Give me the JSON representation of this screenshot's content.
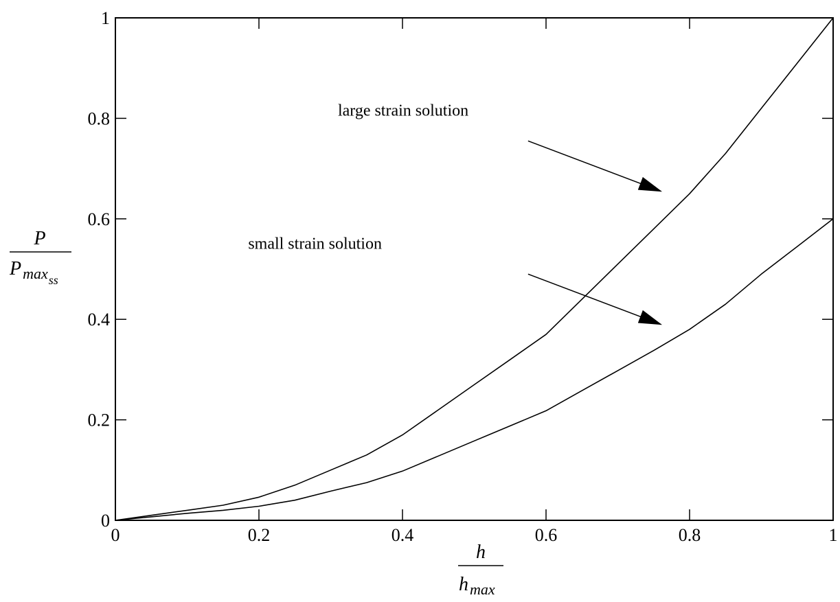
{
  "chart_data": {
    "type": "line",
    "xlim": [
      0,
      1
    ],
    "ylim": [
      0,
      1
    ],
    "grid": false,
    "x_ticks": [
      "0",
      "0.2",
      "0.4",
      "0.6",
      "0.8",
      "1"
    ],
    "y_ticks": [
      "0",
      "0.2",
      "0.4",
      "0.6",
      "0.8",
      "1"
    ],
    "xlabel": {
      "numerator": "h",
      "denominator_base": "h",
      "denominator_subscript": "max"
    },
    "ylabel": {
      "numerator": "P",
      "denominator_base": "P",
      "denominator_subscript": "max",
      "denominator_subsubscript": "ss"
    },
    "series": [
      {
        "name": "large strain solution",
        "x": [
          0,
          0.05,
          0.1,
          0.15,
          0.2,
          0.25,
          0.3,
          0.35,
          0.4,
          0.45,
          0.5,
          0.55,
          0.6,
          0.65,
          0.7,
          0.75,
          0.8,
          0.85,
          0.9,
          0.95,
          1.0
        ],
        "y": [
          0,
          0.01,
          0.02,
          0.03,
          0.046,
          0.07,
          0.1,
          0.13,
          0.17,
          0.22,
          0.27,
          0.32,
          0.37,
          0.44,
          0.51,
          0.58,
          0.65,
          0.73,
          0.82,
          0.91,
          1.0
        ]
      },
      {
        "name": "small strain solution",
        "x": [
          0,
          0.05,
          0.1,
          0.15,
          0.2,
          0.25,
          0.3,
          0.35,
          0.4,
          0.45,
          0.5,
          0.55,
          0.6,
          0.65,
          0.7,
          0.75,
          0.8,
          0.85,
          0.9,
          0.95,
          1.0
        ],
        "y": [
          0,
          0.007,
          0.014,
          0.02,
          0.028,
          0.04,
          0.058,
          0.075,
          0.098,
          0.128,
          0.158,
          0.188,
          0.218,
          0.258,
          0.298,
          0.338,
          0.38,
          0.43,
          0.49,
          0.545,
          0.6
        ]
      }
    ],
    "annotations": [
      {
        "text": "large strain solution",
        "arrow_from": [
          0.575,
          0.755
        ],
        "arrow_to": [
          0.76,
          0.655
        ],
        "text_at": [
          0.31,
          0.805
        ]
      },
      {
        "text": "small strain solution",
        "arrow_from": [
          0.575,
          0.49
        ],
        "arrow_to": [
          0.76,
          0.39
        ],
        "text_at": [
          0.185,
          0.54
        ]
      }
    ]
  }
}
